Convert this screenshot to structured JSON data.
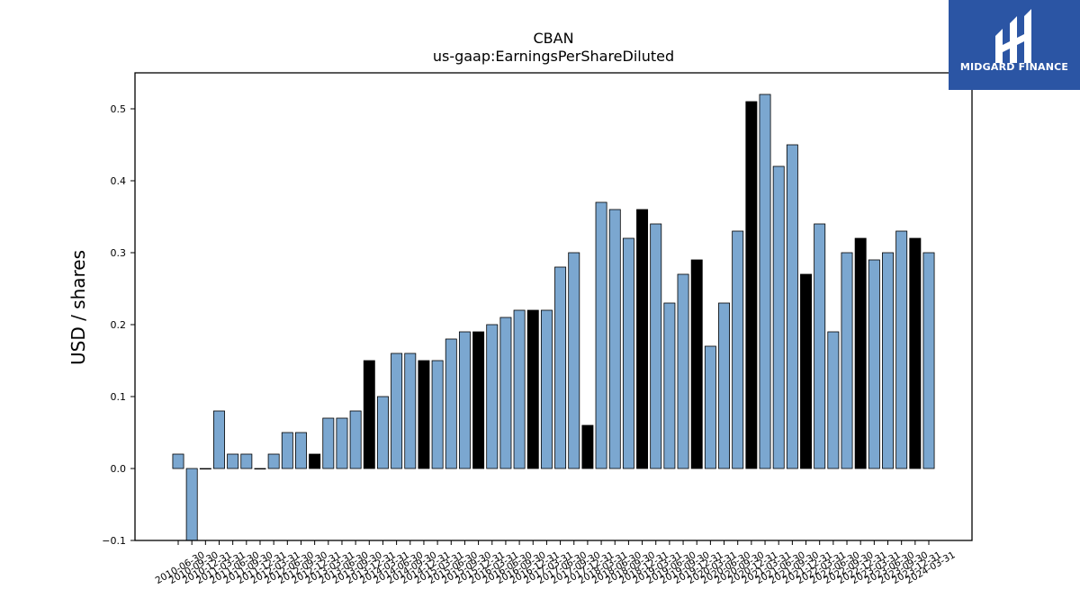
{
  "logo": {
    "text": "MIDGARD FINANCE",
    "bg_color": "#2B55A4"
  },
  "chart_data": {
    "type": "bar",
    "title": "CBAN",
    "subtitle": "us-gaap:EarningsPerShareDiluted",
    "ylabel": "USD / shares",
    "xlabel": "",
    "ylim": [
      -0.1,
      0.55
    ],
    "yticks": [
      -0.1,
      0.0,
      0.1,
      0.2,
      0.3,
      0.4,
      0.5
    ],
    "ytick_labels": [
      "−0.1",
      "0.0",
      "0.1",
      "0.2",
      "0.3",
      "0.4",
      "0.5"
    ],
    "colors": {
      "quarter": "#7BA7D0",
      "annual": "#000000"
    },
    "categories": [
      "2010-06-30",
      "2010-09-30",
      "2010-12-31",
      "2011-03-31",
      "2011-06-30",
      "2011-09-30",
      "2011-12-31",
      "2012-03-31",
      "2012-06-30",
      "2012-09-30",
      "2012-12-31",
      "2013-03-31",
      "2013-06-30",
      "2013-09-30",
      "2013-12-31",
      "2014-03-31",
      "2014-06-30",
      "2014-09-30",
      "2014-12-31",
      "2015-03-31",
      "2015-06-30",
      "2015-09-30",
      "2015-12-31",
      "2016-03-31",
      "2016-06-30",
      "2016-09-30",
      "2016-12-31",
      "2017-03-31",
      "2017-06-30",
      "2017-09-30",
      "2017-12-31",
      "2018-03-31",
      "2018-06-30",
      "2018-09-30",
      "2018-12-31",
      "2019-03-31",
      "2019-06-30",
      "2019-09-30",
      "2019-12-31",
      "2020-03-31",
      "2020-06-30",
      "2020-09-30",
      "2020-12-31",
      "2021-03-31",
      "2021-06-30",
      "2021-09-30",
      "2021-12-31",
      "2022-03-31",
      "2022-06-30",
      "2022-09-30",
      "2022-12-31",
      "2023-03-31",
      "2023-06-30",
      "2023-09-30",
      "2023-12-31",
      "2024-03-31"
    ],
    "values": [
      0.02,
      -0.1,
      0.0,
      0.08,
      0.02,
      0.02,
      0.0,
      0.02,
      0.05,
      0.05,
      0.02,
      0.07,
      0.07,
      0.08,
      0.15,
      0.1,
      0.16,
      0.16,
      0.15,
      0.15,
      0.18,
      0.19,
      0.19,
      0.2,
      0.21,
      0.22,
      0.22,
      0.22,
      0.28,
      0.3,
      0.06,
      0.37,
      0.36,
      0.32,
      0.36,
      0.34,
      0.23,
      0.27,
      0.29,
      0.17,
      0.23,
      0.33,
      0.51,
      0.52,
      0.42,
      0.45,
      0.27,
      0.34,
      0.19,
      0.3,
      0.32,
      0.29,
      0.3,
      0.33,
      0.32,
      0.3
    ],
    "annual": [
      false,
      false,
      false,
      false,
      false,
      false,
      false,
      false,
      false,
      false,
      true,
      false,
      false,
      false,
      true,
      false,
      false,
      false,
      true,
      false,
      false,
      false,
      true,
      false,
      false,
      false,
      true,
      false,
      false,
      false,
      true,
      false,
      false,
      false,
      true,
      false,
      false,
      false,
      true,
      false,
      false,
      false,
      true,
      false,
      false,
      false,
      true,
      false,
      false,
      false,
      true,
      false,
      false,
      false,
      true,
      false
    ]
  }
}
